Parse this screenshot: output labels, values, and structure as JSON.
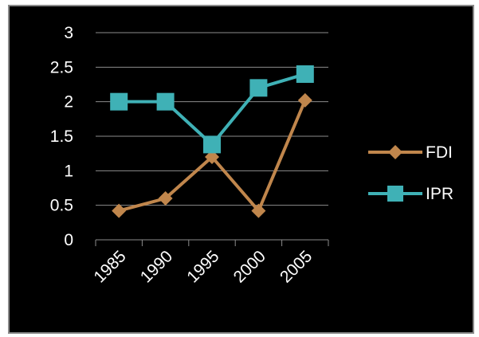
{
  "chart_data": {
    "type": "line",
    "title": "",
    "xlabel": "",
    "ylabel": "",
    "categories": [
      "1985",
      "1990",
      "1995",
      "2000",
      "2005"
    ],
    "ylim": [
      0,
      3
    ],
    "yticks": [
      "0",
      "0.5",
      "1",
      "1.5",
      "2",
      "2.5",
      "3"
    ],
    "grid": true,
    "legend_position": "right",
    "series": [
      {
        "name": "FDI",
        "values": [
          0.42,
          0.6,
          1.2,
          0.42,
          2.02
        ],
        "color": "#c0864c",
        "marker": "diamond"
      },
      {
        "name": "IPR",
        "values": [
          2.0,
          2.0,
          1.38,
          2.2,
          2.4
        ],
        "color": "#3fb1b6",
        "marker": "square"
      }
    ]
  }
}
